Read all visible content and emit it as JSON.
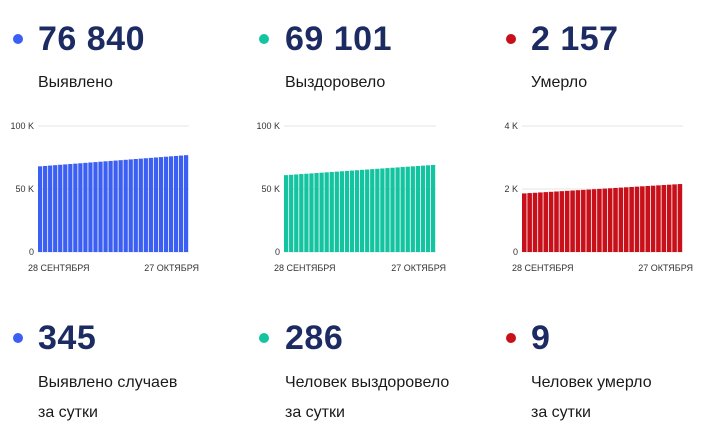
{
  "colors": {
    "detected": "#3b5ef3",
    "recovered": "#14c4a0",
    "died": "#c8101a",
    "number": "#1d2b63"
  },
  "totals": [
    {
      "key": "detected",
      "value": "76 840",
      "label": "Выявлено"
    },
    {
      "key": "recovered",
      "value": "69 101",
      "label": "Выздоровело"
    },
    {
      "key": "died",
      "value": "2 157",
      "label": "Умерло"
    }
  ],
  "daily": [
    {
      "key": "detected",
      "value": "345",
      "line1": "Выявлено случаев",
      "line2": "за сутки"
    },
    {
      "key": "recovered",
      "value": "286",
      "line1": "Человек выздоровело",
      "line2": "за сутки"
    },
    {
      "key": "died",
      "value": "9",
      "line1": "Человек умерло",
      "line2": "за сутки"
    }
  ],
  "chart_data": [
    {
      "type": "bar",
      "series": [
        {
          "values_start": 68000,
          "values_end": 76840
        }
      ],
      "x_start_label": "28 СЕНТЯБРЯ",
      "x_end_label": "27 ОКТЯБРЯ",
      "yticks": [
        {
          "v": 0,
          "label": "0"
        },
        {
          "v": 50000,
          "label": "50 K"
        },
        {
          "v": 100000,
          "label": "100 K"
        }
      ],
      "ylim": [
        0,
        100000
      ],
      "color": "#3b5ef3",
      "bar_count": 30,
      "grid": true
    },
    {
      "type": "bar",
      "series": [
        {
          "values_start": 61000,
          "values_end": 69101
        }
      ],
      "x_start_label": "28 СЕНТЯБРЯ",
      "x_end_label": "27 ОКТЯБРЯ",
      "yticks": [
        {
          "v": 0,
          "label": "0"
        },
        {
          "v": 50000,
          "label": "50 K"
        },
        {
          "v": 100000,
          "label": "100 K"
        }
      ],
      "ylim": [
        0,
        100000
      ],
      "color": "#14c4a0",
      "bar_count": 30,
      "grid": true
    },
    {
      "type": "bar",
      "series": [
        {
          "values_start": 1860,
          "values_end": 2157
        }
      ],
      "x_start_label": "28 СЕНТЯБРЯ",
      "x_end_label": "27 ОКТЯБРЯ",
      "yticks": [
        {
          "v": 0,
          "label": "0"
        },
        {
          "v": 2000,
          "label": "2 K"
        },
        {
          "v": 4000,
          "label": "4 K"
        }
      ],
      "ylim": [
        0,
        4000
      ],
      "color": "#c8101a",
      "bar_count": 30,
      "grid": true
    }
  ]
}
